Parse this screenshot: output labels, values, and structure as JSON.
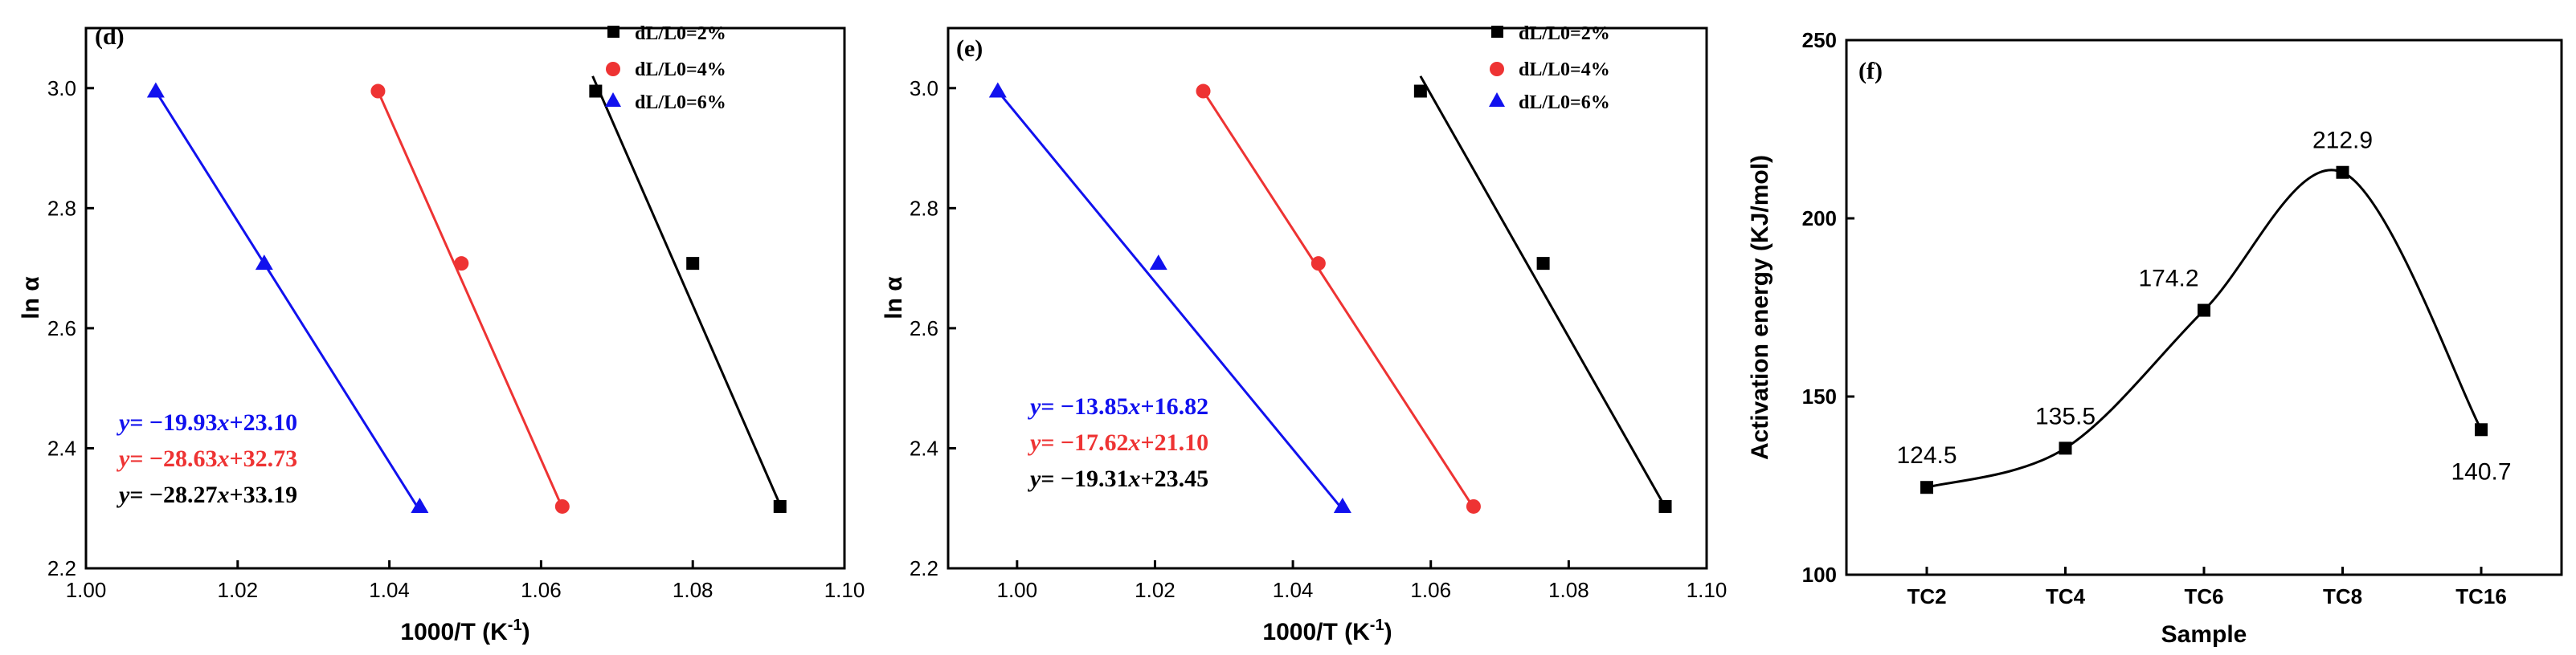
{
  "colors": {
    "black": "#000000",
    "red": "#ee3333",
    "blue": "#1111ee"
  },
  "chart_data": [
    {
      "type": "scatter",
      "panel_label": "(d)",
      "xlabel": "1000/T (K",
      "xlabel_sup": "-1",
      "xlabel_end": ")",
      "ylabel": "ln α",
      "xlim": [
        1.0,
        1.1
      ],
      "ylim": [
        2.2,
        3.1
      ],
      "xticks": [
        1.0,
        1.02,
        1.04,
        1.06,
        1.08,
        1.1
      ],
      "xtick_labels": [
        "1.00",
        "1.02",
        "1.04",
        "1.06",
        "1.08",
        "1.10"
      ],
      "yticks": [
        2.2,
        2.4,
        2.6,
        2.8,
        3.0
      ],
      "ytick_labels": [
        "2.2",
        "2.4",
        "2.6",
        "2.8",
        "3.0"
      ],
      "legend_position": "top-right",
      "series": [
        {
          "name": "dL/L0=2%",
          "color": "#000000",
          "marker": "square",
          "x": [
            1.0672,
            1.08,
            1.0915
          ],
          "y": [
            2.995,
            2.708,
            2.303
          ],
          "fit": {
            "x": [
              1.0668,
              1.0915
            ],
            "y": [
              3.02,
              2.306
            ]
          },
          "eq_prefix": "y",
          "eq_rest": "= −28.27",
          "eq_var": "x",
          "eq_tail": "+33.19"
        },
        {
          "name": "dL/L0=4%",
          "color": "#ee3333",
          "marker": "circle",
          "x": [
            1.0385,
            1.0495,
            1.0628
          ],
          "y": [
            2.995,
            2.708,
            2.303
          ],
          "fit": {
            "x": [
              1.0385,
              1.0628
            ],
            "y": [
              2.995,
              2.301
            ]
          },
          "eq_prefix": "y",
          "eq_rest": "= −28.63",
          "eq_var": "x",
          "eq_tail": "+32.73"
        },
        {
          "name": "dL/L0=6%",
          "color": "#1111ee",
          "marker": "triangle",
          "x": [
            1.0092,
            1.0235,
            1.044
          ],
          "y": [
            2.995,
            2.708,
            2.303
          ],
          "fit": {
            "x": [
              1.0092,
              1.044
            ],
            "y": [
              2.995,
              2.296
            ]
          },
          "eq_prefix": "y",
          "eq_rest": "= −19.93",
          "eq_var": "x",
          "eq_tail": "+23.10"
        }
      ]
    },
    {
      "type": "scatter",
      "panel_label": "(e)",
      "xlabel": "1000/T (K",
      "xlabel_sup": "-1",
      "xlabel_end": ")",
      "ylabel": "ln α",
      "xlim": [
        0.99,
        1.1
      ],
      "ylim": [
        2.2,
        3.1
      ],
      "xticks": [
        1.0,
        1.02,
        1.04,
        1.06,
        1.08,
        1.1
      ],
      "xtick_labels": [
        "1.00",
        "1.02",
        "1.04",
        "1.06",
        "1.08",
        "1.10"
      ],
      "yticks": [
        2.2,
        2.4,
        2.6,
        2.8,
        3.0
      ],
      "ytick_labels": [
        "2.2",
        "2.4",
        "2.6",
        "2.8",
        "3.0"
      ],
      "legend_position": "top-right",
      "series": [
        {
          "name": "dL/L0=2%",
          "color": "#000000",
          "marker": "square",
          "x": [
            1.0585,
            1.0763,
            1.094
          ],
          "y": [
            2.995,
            2.708,
            2.303
          ],
          "fit": {
            "x": [
              1.0585,
              1.094
            ],
            "y": [
              3.02,
              2.302
            ]
          },
          "eq_prefix": "y",
          "eq_rest": "= −19.31",
          "eq_var": "x",
          "eq_tail": "+23.45"
        },
        {
          "name": "dL/L0=4%",
          "color": "#ee3333",
          "marker": "circle",
          "x": [
            1.027,
            1.0437,
            1.0662
          ],
          "y": [
            2.995,
            2.708,
            2.303
          ],
          "fit": {
            "x": [
              1.027,
              1.0662
            ],
            "y": [
              2.995,
              2.301
            ]
          },
          "eq_prefix": "y",
          "eq_rest": "= −17.62",
          "eq_var": "x",
          "eq_tail": "+21.10"
        },
        {
          "name": "dL/L0=6%",
          "color": "#1111ee",
          "marker": "triangle",
          "x": [
            0.9972,
            1.0205,
            1.0472
          ],
          "y": [
            2.995,
            2.708,
            2.303
          ],
          "fit": {
            "x": [
              0.9972,
              1.0472
            ],
            "y": [
              2.995,
              2.298
            ]
          },
          "eq_prefix": "y",
          "eq_rest": "= −13.85",
          "eq_var": "x",
          "eq_tail": "+16.82"
        }
      ]
    },
    {
      "type": "line",
      "panel_label": "(f)",
      "xlabel": "Sample",
      "ylabel": "Activation energy (KJ/mol)",
      "categories": [
        "TC2",
        "TC4",
        "TC6",
        "TC8",
        "TC16"
      ],
      "values": [
        124.5,
        135.5,
        174.2,
        212.9,
        140.7
      ],
      "value_labels": [
        "124.5",
        "135.5",
        "174.2",
        "212.9",
        "140.7"
      ],
      "ylim": [
        100,
        250
      ],
      "yticks": [
        100,
        150,
        200,
        250
      ],
      "ytick_labels": [
        "100",
        "150",
        "200",
        "250"
      ],
      "curve": "smooth spline",
      "color": "#000000",
      "marker": "square"
    }
  ]
}
